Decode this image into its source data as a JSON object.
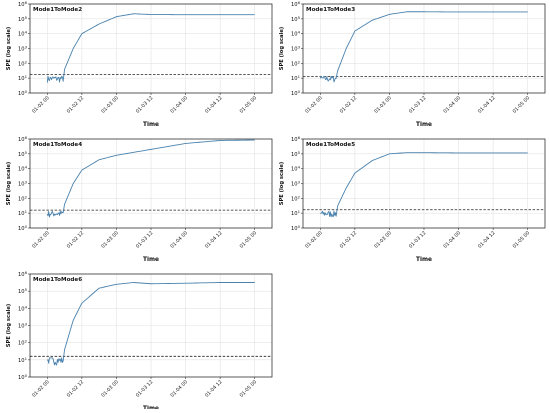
{
  "colors": {
    "line": "#4a82ad",
    "threshold": "#222222",
    "grid": "#e3e3e3",
    "axis": "#333333"
  },
  "chart_data": [
    {
      "type": "line",
      "title": "Mode1ToMode2",
      "xlabel": "Time",
      "ylabel": "SPE (log scale)",
      "yscale": "log",
      "ylim": [
        1,
        1000000
      ],
      "xlim": [
        "01-01 18",
        "01-05 06"
      ],
      "x_ticks": [
        "01-02 00",
        "01-02 12",
        "01-03 00",
        "01-03 12",
        "01-04 00",
        "01-04 12",
        "01-05 00"
      ],
      "y_ticks": [
        "10^0",
        "10^1",
        "10^2",
        "10^3",
        "10^4",
        "10^5",
        "10^6"
      ],
      "grid": true,
      "threshold": 18,
      "series": [
        {
          "values": [
            [
              "01-02 00",
              8
            ],
            [
              "01-02 03",
              10
            ],
            [
              "01-02 06",
              40
            ],
            [
              "01-02 09",
              1000
            ],
            [
              "01-02 12",
              10000
            ],
            [
              "01-02 18",
              45000
            ],
            [
              "01-03 00",
              140000
            ],
            [
              "01-03 06",
              220000
            ],
            [
              "01-03 12",
              195000
            ],
            [
              "01-04 00",
              190000
            ],
            [
              "01-04 12",
              190000
            ],
            [
              "01-05 00",
              190000
            ]
          ]
        }
      ]
    },
    {
      "type": "line",
      "title": "Mode1ToMode3",
      "xlabel": "Time",
      "ylabel": "SPE (log scale)",
      "yscale": "log",
      "ylim": [
        1,
        1000000
      ],
      "xlim": [
        "01-01 18",
        "01-05 06"
      ],
      "x_ticks": [
        "01-02 00",
        "01-02 12",
        "01-03 00",
        "01-03 12",
        "01-04 00",
        "01-04 12",
        "01-05 00"
      ],
      "y_ticks": [
        "10^0",
        "10^1",
        "10^2",
        "10^3",
        "10^4",
        "10^5",
        "10^6"
      ],
      "grid": true,
      "threshold": 13,
      "series": [
        {
          "values": [
            [
              "01-02 00",
              8
            ],
            [
              "01-02 03",
              10
            ],
            [
              "01-02 06",
              30
            ],
            [
              "01-02 09",
              1000
            ],
            [
              "01-02 12",
              15000
            ],
            [
              "01-02 18",
              80000
            ],
            [
              "01-03 00",
              200000
            ],
            [
              "01-03 06",
              300000
            ],
            [
              "01-03 12",
              300000
            ],
            [
              "01-04 00",
              290000
            ],
            [
              "01-04 12",
              290000
            ],
            [
              "01-05 00",
              290000
            ]
          ]
        }
      ]
    },
    {
      "type": "line",
      "title": "Mode1ToMode4",
      "xlabel": "Time",
      "ylabel": "SPE (log scale)",
      "yscale": "log",
      "ylim": [
        1,
        1000000
      ],
      "xlim": [
        "01-01 18",
        "01-05 06"
      ],
      "x_ticks": [
        "01-02 00",
        "01-02 12",
        "01-03 00",
        "01-03 12",
        "01-04 00",
        "01-04 12",
        "01-05 00"
      ],
      "y_ticks": [
        "10^0",
        "10^1",
        "10^2",
        "10^3",
        "10^4",
        "10^5",
        "10^6"
      ],
      "grid": true,
      "threshold": 16,
      "series": [
        {
          "values": [
            [
              "01-02 00",
              8
            ],
            [
              "01-02 03",
              10
            ],
            [
              "01-02 06",
              40
            ],
            [
              "01-02 09",
              1000
            ],
            [
              "01-02 12",
              8000
            ],
            [
              "01-02 18",
              40000
            ],
            [
              "01-03 00",
              80000
            ],
            [
              "01-03 12",
              200000
            ],
            [
              "01-04 00",
              500000
            ],
            [
              "01-04 12",
              800000
            ],
            [
              "01-05 00",
              850000
            ]
          ]
        }
      ]
    },
    {
      "type": "line",
      "title": "Mode1ToMode5",
      "xlabel": "Time",
      "ylabel": "SPE (log scale)",
      "yscale": "log",
      "ylim": [
        1,
        1000000
      ],
      "xlim": [
        "01-01 18",
        "01-05 06"
      ],
      "x_ticks": [
        "01-02 00",
        "01-02 12",
        "01-03 00",
        "01-03 12",
        "01-04 00",
        "01-04 12",
        "01-05 00"
      ],
      "y_ticks": [
        "10^0",
        "10^1",
        "10^2",
        "10^3",
        "10^4",
        "10^5",
        "10^6"
      ],
      "grid": true,
      "threshold": 17,
      "series": [
        {
          "values": [
            [
              "01-02 00",
              8
            ],
            [
              "01-02 03",
              10
            ],
            [
              "01-02 06",
              30
            ],
            [
              "01-02 09",
              500
            ],
            [
              "01-02 12",
              5000
            ],
            [
              "01-02 18",
              35000
            ],
            [
              "01-03 00",
              100000
            ],
            [
              "01-03 06",
              120000
            ],
            [
              "01-03 12",
              120000
            ],
            [
              "01-04 00",
              115000
            ],
            [
              "01-04 12",
              115000
            ],
            [
              "01-05 00",
              115000
            ]
          ]
        }
      ]
    },
    {
      "type": "line",
      "title": "Mode1ToMode6",
      "xlabel": "Time",
      "ylabel": "SPE (log scale)",
      "yscale": "log",
      "ylim": [
        1,
        1000000
      ],
      "xlim": [
        "01-01 18",
        "01-05 06"
      ],
      "x_ticks": [
        "01-02 00",
        "01-02 12",
        "01-03 00",
        "01-03 12",
        "01-04 00",
        "01-04 12",
        "01-05 00"
      ],
      "y_ticks": [
        "10^0",
        "10^1",
        "10^2",
        "10^3",
        "10^4",
        "10^5",
        "10^6"
      ],
      "grid": true,
      "threshold": 16,
      "series": [
        {
          "values": [
            [
              "01-02 00",
              6
            ],
            [
              "01-02 03",
              8
            ],
            [
              "01-02 06",
              40
            ],
            [
              "01-02 09",
              2000
            ],
            [
              "01-02 12",
              20000
            ],
            [
              "01-02 18",
              150000
            ],
            [
              "01-03 00",
              250000
            ],
            [
              "01-03 06",
              320000
            ],
            [
              "01-03 12",
              270000
            ],
            [
              "01-04 00",
              290000
            ],
            [
              "01-04 12",
              320000
            ],
            [
              "01-05 00",
              320000
            ]
          ]
        }
      ]
    }
  ]
}
